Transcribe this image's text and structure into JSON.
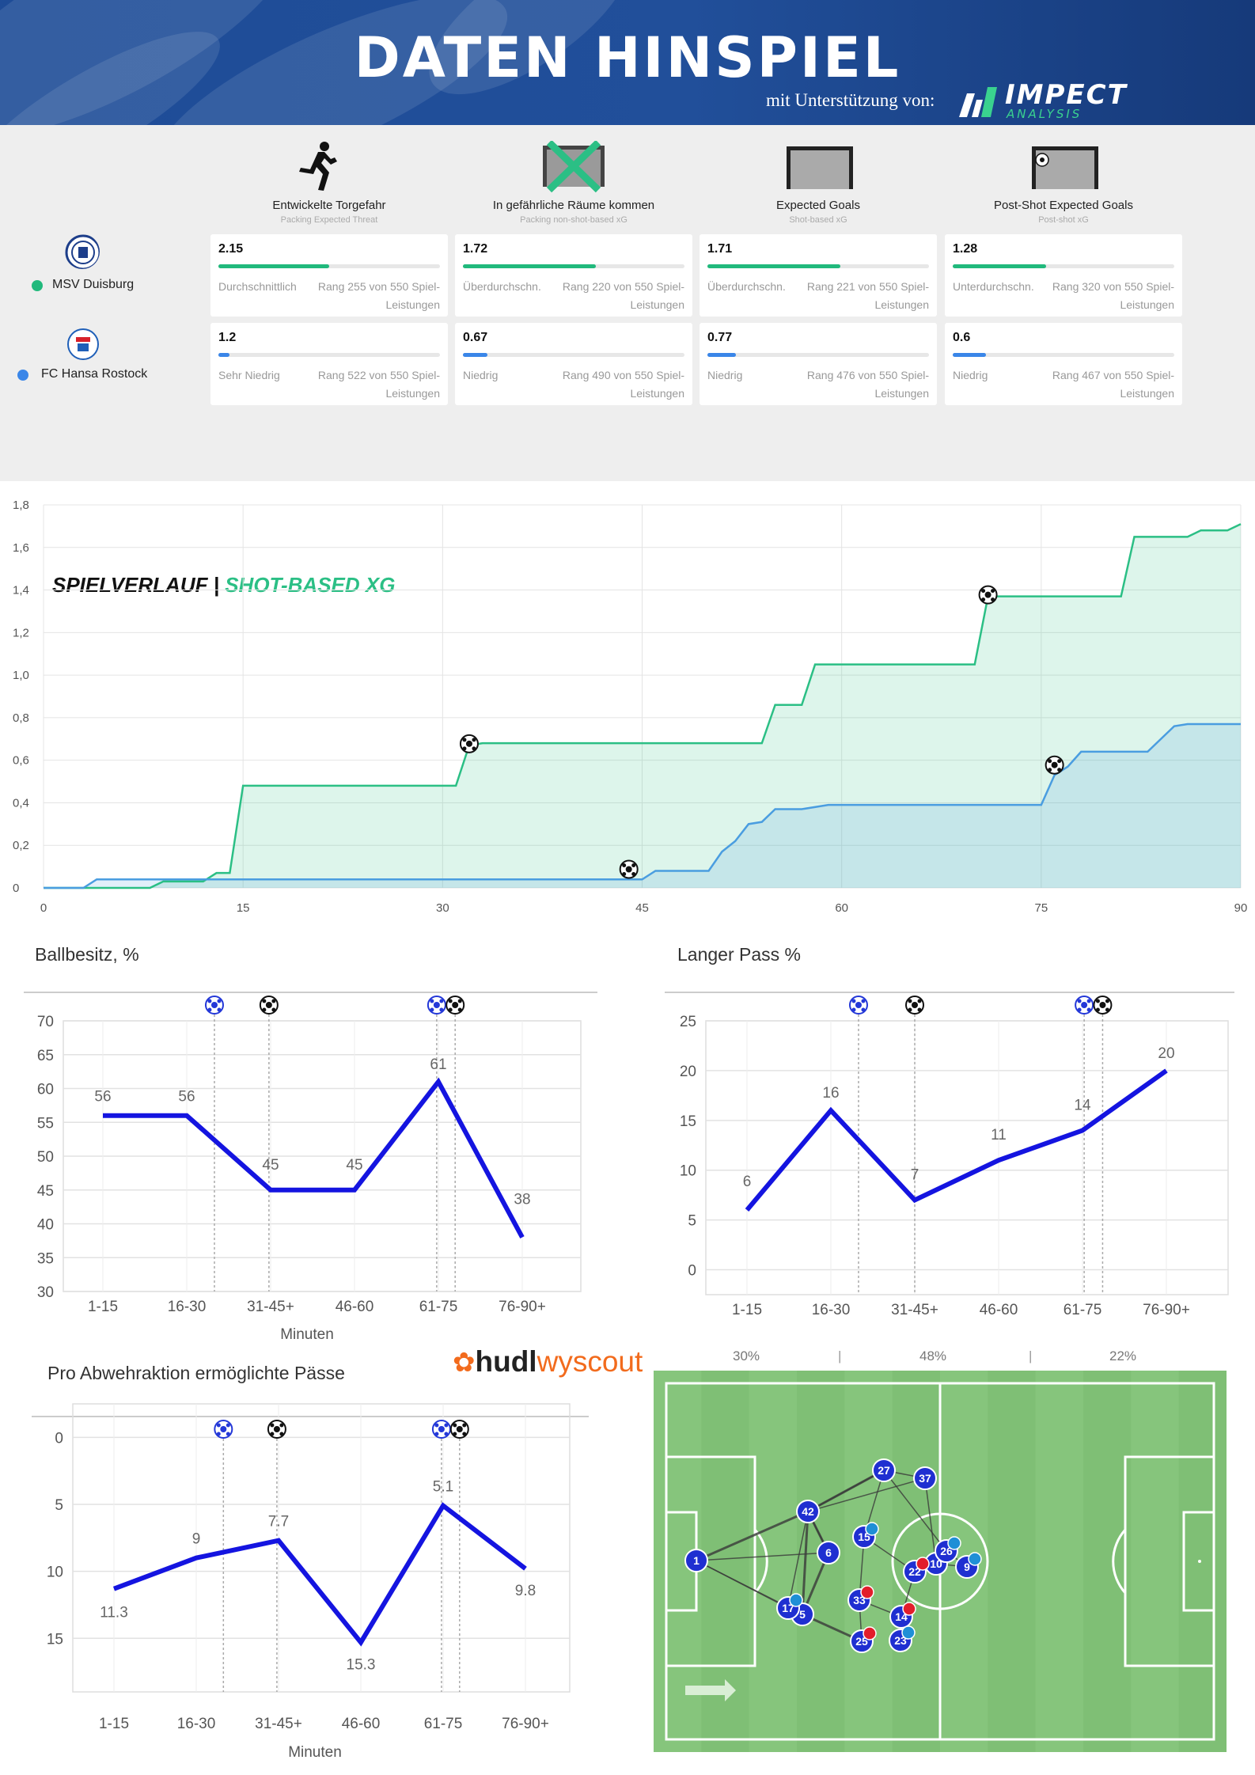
{
  "header": {
    "title": "DATEN HINSPIEL",
    "support_text": "mit Unterstützung von:",
    "logo_name": "IMPECT",
    "logo_sub": "ANALYSIS"
  },
  "metrics": [
    {
      "title": "Entwickelte Torgefahr",
      "subtitle": "Packing Expected Threat",
      "icon": "running-player-icon"
    },
    {
      "title": "In gefährliche Räume kommen",
      "subtitle": "Packing non-shot-based xG",
      "icon": "crossed-goal-icon"
    },
    {
      "title": "Expected Goals",
      "subtitle": "Shot-based xG",
      "icon": "goal-icon"
    },
    {
      "title": "Post-Shot Expected Goals",
      "subtitle": "Post-shot xG",
      "icon": "goal-ball-icon"
    }
  ],
  "teams": [
    {
      "name": "MSV Duisburg",
      "color": "#21b97c",
      "cards": [
        {
          "value": "2.15",
          "fraction": 0.5,
          "level": "Durchschnittlich",
          "rank": "Rang 255 von 550 Spiel-Leistungen"
        },
        {
          "value": "1.72",
          "fraction": 0.6,
          "level": "Überdurchschn.",
          "rank": "Rang 220 von 550 Spiel-Leistungen"
        },
        {
          "value": "1.71",
          "fraction": 0.6,
          "level": "Überdurchschn.",
          "rank": "Rang 221 von 550 Spiel-Leistungen"
        },
        {
          "value": "1.28",
          "fraction": 0.42,
          "level": "Unterdurchschn.",
          "rank": "Rang 320 von 550 Spiel-Leistungen"
        }
      ]
    },
    {
      "name": "FC Hansa Rostock",
      "color": "#3a86e8",
      "cards": [
        {
          "value": "1.2",
          "fraction": 0.05,
          "level": "Sehr Niedrig",
          "rank": "Rang 522 von 550 Spiel-Leistungen"
        },
        {
          "value": "0.67",
          "fraction": 0.11,
          "level": "Niedrig",
          "rank": "Rang 490 von 550 Spiel-Leistungen"
        },
        {
          "value": "0.77",
          "fraction": 0.13,
          "level": "Niedrig",
          "rank": "Rang 476 von 550 Spiel-Leistungen"
        },
        {
          "value": "0.6",
          "fraction": 0.15,
          "level": "Niedrig",
          "rank": "Rang 467 von 550 Spiel-Leistungen"
        }
      ]
    }
  ],
  "spielverlauf": {
    "title": "SPIELVERLAUF | ",
    "subtitle": "SHOT-BASED XG"
  },
  "chart_data": [
    {
      "type": "area",
      "title": "SPIELVERLAUF | SHOT-BASED XG",
      "xlim": [
        0,
        90
      ],
      "ylim": [
        0,
        1.8
      ],
      "xticks": [
        0,
        15,
        30,
        45,
        60,
        75,
        90
      ],
      "yticks": [
        "0",
        "0,2",
        "0,4",
        "0,6",
        "0,8",
        "1,0",
        "1,2",
        "1,4",
        "1,6",
        "1,8"
      ],
      "series": [
        {
          "name": "MSV Duisburg",
          "color": "#2bbf85",
          "points": [
            [
              0,
              0
            ],
            [
              3,
              0
            ],
            [
              8,
              0
            ],
            [
              9,
              0.03
            ],
            [
              12,
              0.03
            ],
            [
              13,
              0.07
            ],
            [
              14,
              0.07
            ],
            [
              15,
              0.48
            ],
            [
              31,
              0.48
            ],
            [
              32,
              0.67
            ],
            [
              33,
              0.68
            ],
            [
              54,
              0.68
            ],
            [
              55,
              0.86
            ],
            [
              57,
              0.86
            ],
            [
              58,
              1.05
            ],
            [
              70,
              1.05
            ],
            [
              71,
              1.37
            ],
            [
              81,
              1.37
            ],
            [
              82,
              1.65
            ],
            [
              86,
              1.65
            ],
            [
              87,
              1.68
            ],
            [
              89,
              1.68
            ],
            [
              90,
              1.71
            ]
          ]
        },
        {
          "name": "FC Hansa Rostock",
          "color": "#4a9de0",
          "points": [
            [
              0,
              0
            ],
            [
              3,
              0
            ],
            [
              4,
              0.04
            ],
            [
              45,
              0.04
            ],
            [
              46,
              0.08
            ],
            [
              50,
              0.08
            ],
            [
              51,
              0.17
            ],
            [
              52,
              0.22
            ],
            [
              53,
              0.3
            ],
            [
              54,
              0.31
            ],
            [
              55,
              0.37
            ],
            [
              57,
              0.37
            ],
            [
              59,
              0.39
            ],
            [
              75,
              0.39
            ],
            [
              76,
              0.53
            ],
            [
              77,
              0.57
            ],
            [
              78,
              0.64
            ],
            [
              83,
              0.64
            ],
            [
              84,
              0.7
            ],
            [
              85,
              0.76
            ],
            [
              86,
              0.77
            ],
            [
              90,
              0.77
            ]
          ]
        }
      ],
      "goals": [
        [
          32,
          0.67
        ],
        [
          44,
          0.08
        ],
        [
          71,
          1.37
        ],
        [
          76,
          0.57
        ]
      ]
    },
    {
      "type": "line",
      "title": "Ballbesitz, %",
      "categories": [
        "1-15",
        "16-30",
        "31-45+",
        "46-60",
        "61-75",
        "76-90+"
      ],
      "values": [
        56,
        56,
        45,
        45,
        61,
        38
      ],
      "xlabel": "Minuten",
      "ylim": [
        30,
        70
      ],
      "yticks": [
        30,
        35,
        40,
        45,
        50,
        55,
        60,
        65,
        70
      ],
      "events": [
        {
          "x": 1.33,
          "team": "blue"
        },
        {
          "x": 1.98,
          "team": "black"
        },
        {
          "x": 3.98,
          "team": "blue"
        },
        {
          "x": 4.2,
          "team": "black"
        }
      ]
    },
    {
      "type": "line",
      "title": "Langer Pass %",
      "categories": [
        "1-15",
        "16-30",
        "31-45+",
        "46-60",
        "61-75",
        "76-90+"
      ],
      "values": [
        6,
        16,
        7,
        11,
        14,
        20
      ],
      "xlabel": "",
      "ylim": [
        -2.5,
        25
      ],
      "yticks": [
        0,
        5,
        10,
        15,
        20,
        25
      ],
      "events": [
        {
          "x": 1.33,
          "team": "blue"
        },
        {
          "x": 2.0,
          "team": "black"
        },
        {
          "x": 4.02,
          "team": "blue"
        },
        {
          "x": 4.24,
          "team": "black"
        }
      ]
    },
    {
      "type": "line",
      "title": "Pro Abwehraktion ermöglichte Pässe",
      "categories": [
        "1-15",
        "16-30",
        "31-45+",
        "46-60",
        "61-75",
        "76-90+"
      ],
      "values": [
        11.3,
        9,
        7.7,
        15.3,
        5.1,
        9.8
      ],
      "xlabel": "Minuten",
      "ylim": [
        -2.5,
        19
      ],
      "inverted": true,
      "yticks": [
        0,
        5,
        10,
        15
      ],
      "events": [
        {
          "x": 1.33,
          "team": "blue"
        },
        {
          "x": 1.98,
          "team": "black"
        },
        {
          "x": 3.98,
          "team": "blue"
        },
        {
          "x": 4.2,
          "team": "black"
        }
      ]
    }
  ],
  "hudl": {
    "bold": "hudl",
    "light": "wyscout"
  },
  "pitch": {
    "thirds": [
      "30%",
      "|",
      "48%",
      "|",
      "22%"
    ],
    "players": [
      {
        "n": "1",
        "team": "blue"
      },
      {
        "n": "42",
        "team": "blue"
      },
      {
        "n": "27",
        "team": "blue"
      },
      {
        "n": "37",
        "team": "blue"
      },
      {
        "n": "6",
        "team": "blue"
      },
      {
        "n": "5",
        "team": "blue"
      },
      {
        "n": "17",
        "team": "blue"
      },
      {
        "n": "15",
        "team": "blue"
      },
      {
        "n": "10",
        "team": "blue"
      },
      {
        "n": "26",
        "team": "blue"
      },
      {
        "n": "9",
        "team": "blue"
      },
      {
        "n": "22",
        "team": "blue"
      },
      {
        "n": "33",
        "team": "blue"
      },
      {
        "n": "14",
        "team": "blue"
      },
      {
        "n": "25",
        "team": "blue"
      },
      {
        "n": "23",
        "team": "blue"
      }
    ]
  }
}
